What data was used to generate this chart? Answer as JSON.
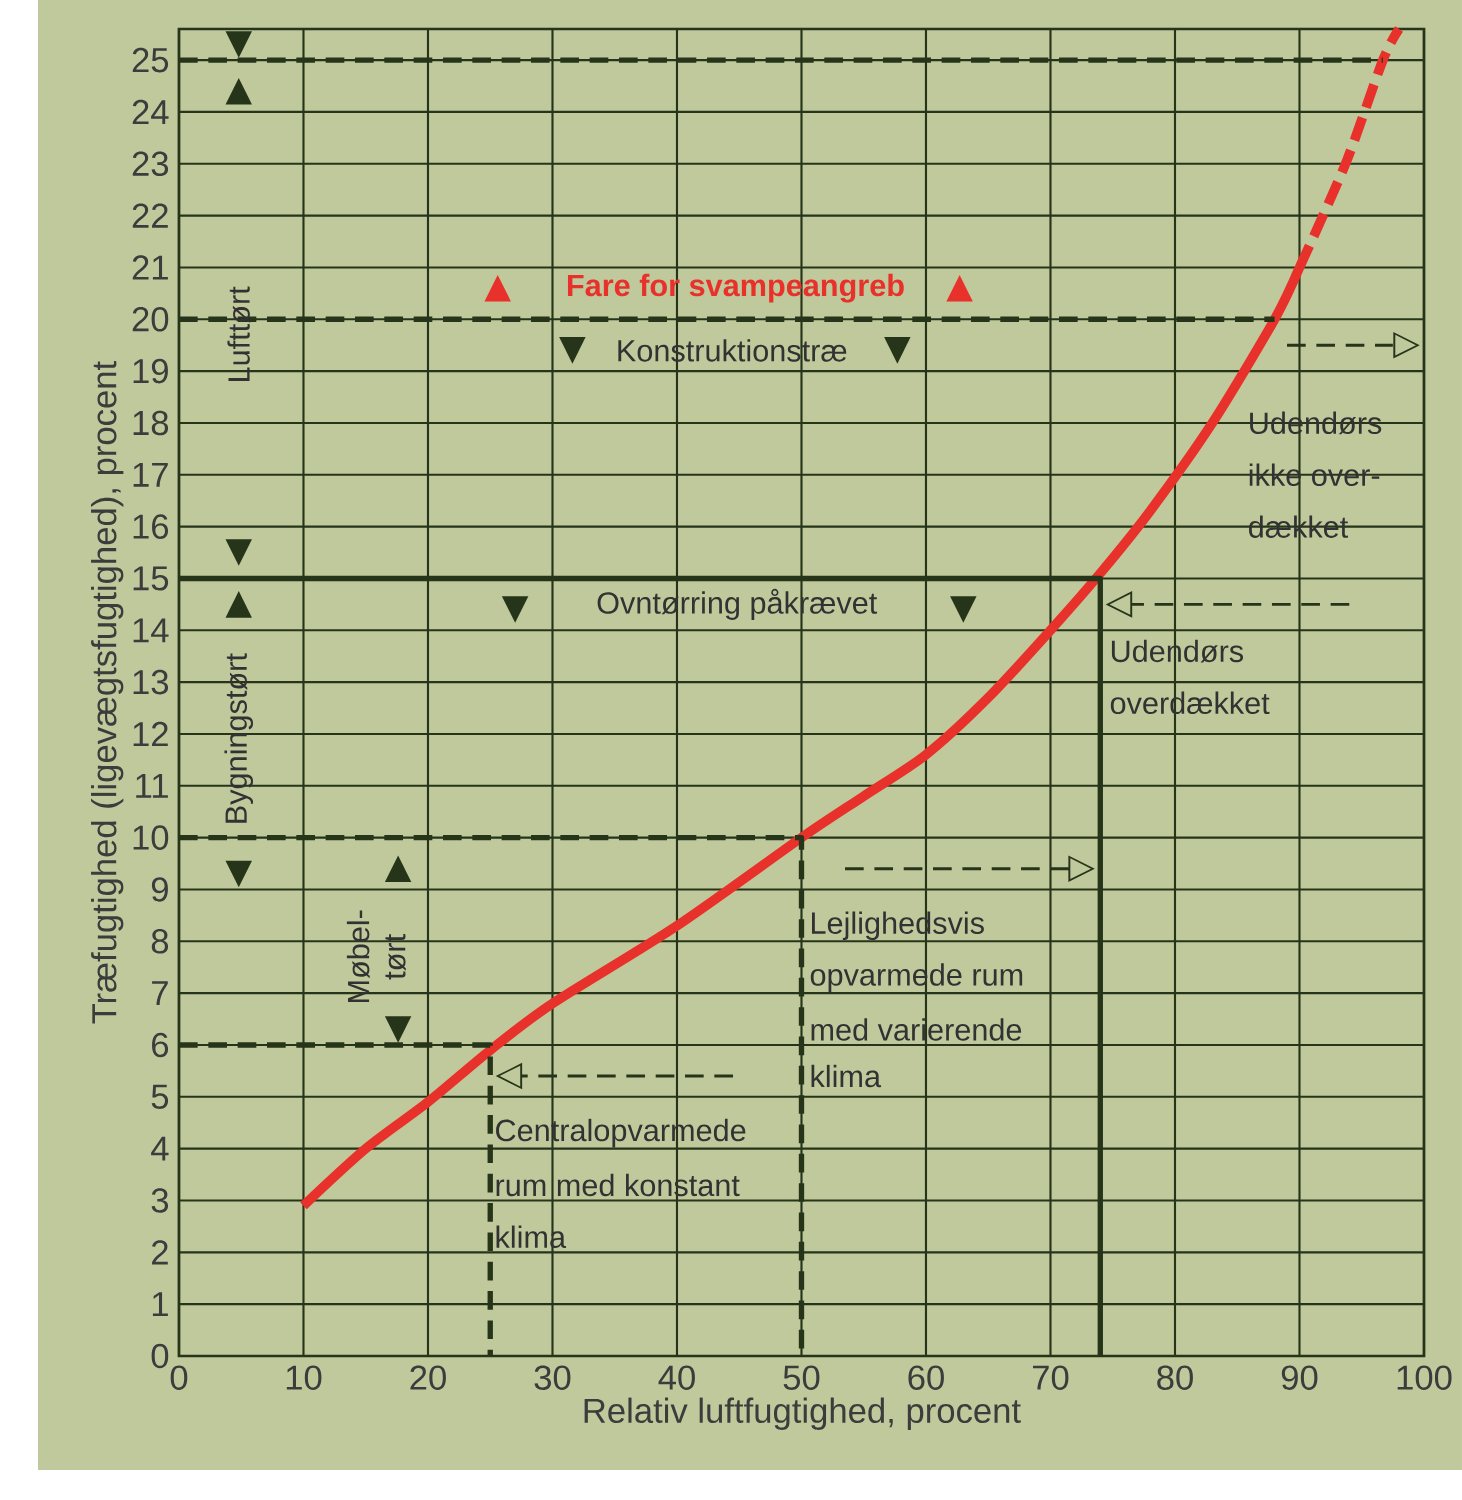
{
  "chart_data": {
    "type": "line",
    "xlabel": "Relativ luftfugtighed, procent",
    "ylabel": "Træfugtighed (ligevægtsfugtighed), procent",
    "xlim": [
      0,
      100
    ],
    "ylim": [
      0,
      25.6
    ],
    "xticks": [
      0,
      10,
      20,
      30,
      40,
      50,
      60,
      70,
      80,
      90,
      100
    ],
    "yticks": [
      0,
      1,
      2,
      3,
      4,
      5,
      6,
      7,
      8,
      9,
      10,
      11,
      12,
      13,
      14,
      15,
      16,
      17,
      18,
      19,
      20,
      21,
      22,
      23,
      24,
      25
    ],
    "grid": true,
    "series": [
      {
        "color": "#e8312a",
        "line_style": "solid",
        "x": [
          10,
          15,
          20,
          25,
          30,
          40,
          50,
          55,
          60,
          65,
          70,
          74,
          78,
          83,
          88,
          90
        ],
        "values": [
          2.9,
          4.0,
          4.9,
          5.9,
          6.8,
          8.3,
          10,
          10.8,
          11.6,
          12.7,
          14.0,
          15.1,
          16.3,
          18,
          20,
          21
        ]
      },
      {
        "color": "#e8312a",
        "line_style": "dashed",
        "x": [
          90,
          93.7,
          96.7,
          98
        ],
        "values": [
          21,
          23,
          25,
          25.6
        ]
      },
      {
        "color": "#26351a",
        "line_style": "dashed",
        "x": [
          0,
          96.7
        ],
        "values": [
          25,
          25
        ]
      },
      {
        "color": "#26351a",
        "line_style": "dashed",
        "x": [
          0,
          88
        ],
        "values": [
          20,
          20
        ]
      },
      {
        "color": "#26351a",
        "line_style": "solid",
        "x": [
          0,
          74,
          74
        ],
        "values": [
          15,
          15,
          0
        ]
      },
      {
        "color": "#26351a",
        "line_style": "dashed",
        "x": [
          0,
          50,
          50
        ],
        "values": [
          10,
          10,
          0
        ]
      },
      {
        "color": "#26351a",
        "line_style": "dashed",
        "x": [
          0,
          25,
          25
        ],
        "values": [
          6,
          6,
          0
        ]
      },
      {
        "color": "#26351a",
        "line_style": "dashed",
        "x": [
          89,
          97.5
        ],
        "values": [
          19.5,
          19.5
        ]
      },
      {
        "color": "#26351a",
        "line_style": "dashed",
        "x": [
          94,
          76.5
        ],
        "values": [
          14.5,
          14.5
        ]
      },
      {
        "color": "#26351a",
        "line_style": "dashed",
        "x": [
          53.5,
          71.5
        ],
        "values": [
          9.4,
          9.4
        ]
      },
      {
        "color": "#26351a",
        "line_style": "dashed",
        "x": [
          44.5,
          27.5
        ],
        "values": [
          5.4,
          5.4
        ]
      }
    ],
    "annotations": [
      "Fare for svampeangreb",
      "Konstruktionstræ",
      "Ovntørring påkrævet",
      "Lufttørt",
      "Bygningstørt",
      "Møbel-",
      "tørt",
      "Udendørs",
      "ikke over-",
      "dækket",
      "Udendørs",
      "overdækket",
      "Lejlighedsvis",
      "opvarmede rum",
      "med varierende",
      "klima",
      "Centralopvarmede",
      "rum med konstant",
      "klima",
      "▼",
      "▲",
      "▼",
      "▲",
      "▼",
      "▲",
      "▼",
      "▲",
      "▲",
      "▼",
      "▼",
      "▼",
      "▼",
      "▷",
      "◁",
      "▷",
      "◁"
    ]
  }
}
